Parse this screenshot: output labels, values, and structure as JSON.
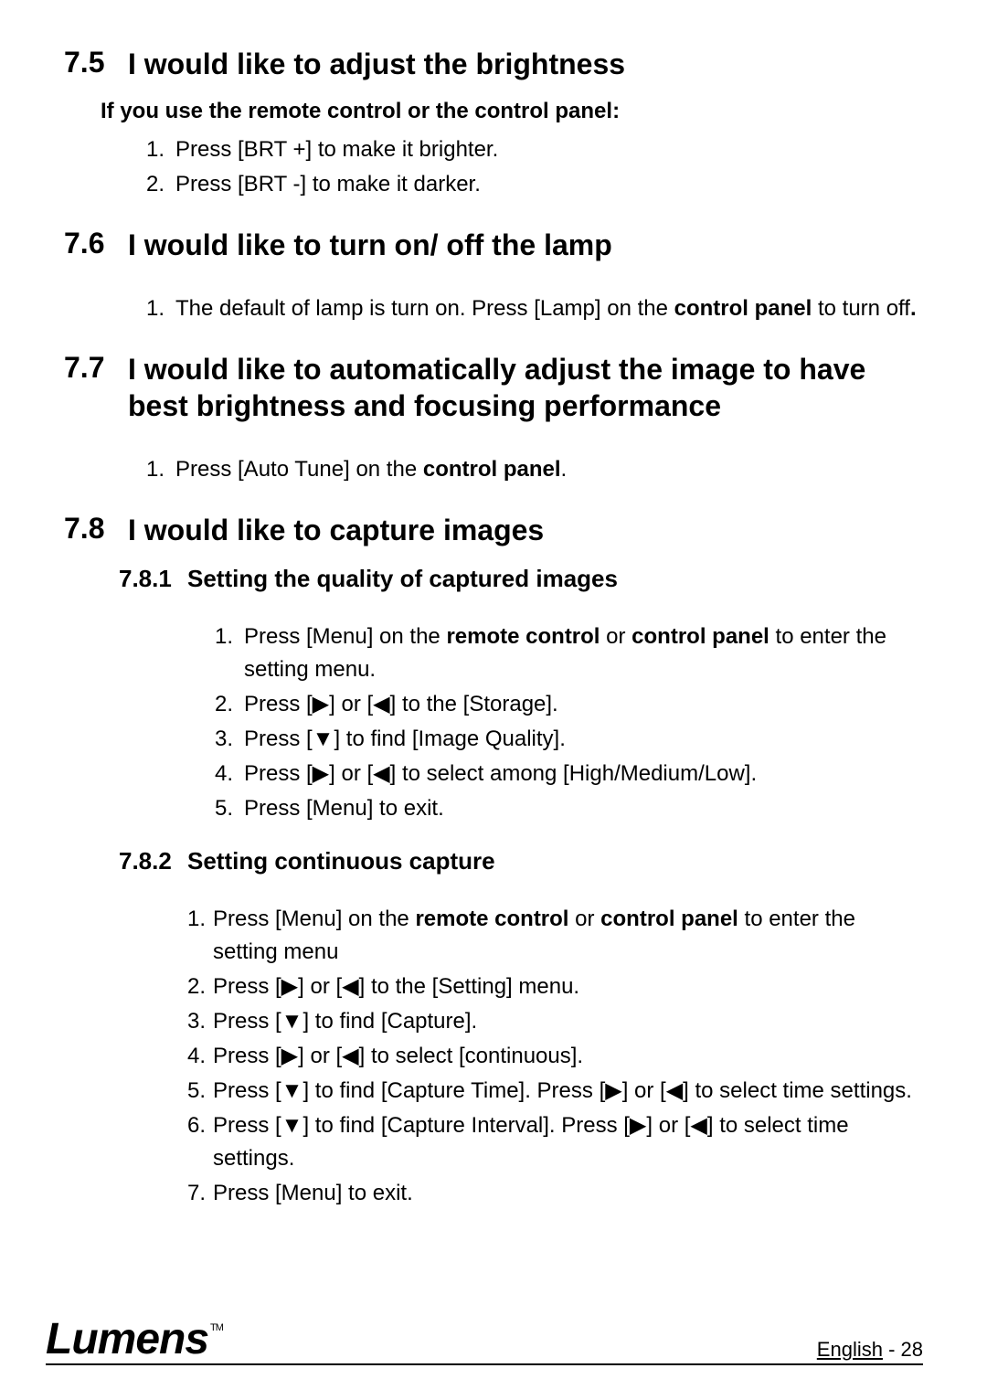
{
  "sections": {
    "s75": {
      "num": "7.5",
      "title": "I would like to adjust the brightness"
    },
    "s76": {
      "num": "7.6",
      "title": "I would like to turn on/ off the lamp"
    },
    "s77": {
      "num": "7.7",
      "title": "I would like to automatically adjust the image to have best brightness and focusing performance"
    },
    "s78": {
      "num": "7.8",
      "title": "I would like to capture images"
    },
    "s781": {
      "num": "7.8.1",
      "title": "Setting the quality of captured images"
    },
    "s782": {
      "num": "7.8.2",
      "title": "Setting continuous capture"
    }
  },
  "s75_sub": "If you use the remote control or the control panel:",
  "s75_items": {
    "i1": {
      "n": "1.",
      "t": "Press [BRT +] to make it brighter."
    },
    "i2": {
      "n": "2.",
      "t": "Press [BRT -] to make it darker."
    }
  },
  "s76_items": {
    "i1": {
      "n": "1.",
      "pre": "The default of lamp is turn on. Press [Lamp] on the ",
      "b1": "control panel",
      "post": " to turn off",
      "b2": "."
    }
  },
  "s77_items": {
    "i1": {
      "n": "1.",
      "pre": "Press [Auto Tune] on the ",
      "b1": "control panel",
      "post": "."
    }
  },
  "s781_items": {
    "i1": {
      "n": "1.",
      "pre": "Press [Menu] on the ",
      "b1": "remote control",
      "mid": " or ",
      "b2": "control panel",
      "post": " to enter the setting menu."
    },
    "i2": {
      "n": "2.",
      "t": "Press [▶] or [◀] to the [Storage]."
    },
    "i3": {
      "n": "3.",
      "t": "Press [▼] to find [Image Quality]."
    },
    "i4": {
      "n": "4.",
      "t": "Press [▶] or [◀] to select among [High/Medium/Low]."
    },
    "i5": {
      "n": "5.",
      "t": "Press [Menu] to exit."
    }
  },
  "s782_items": {
    "i1": {
      "n": "1.",
      "pre": "Press [Menu] on the ",
      "b1": "remote control",
      "mid": " or ",
      "b2": "control panel",
      "post": " to enter the setting menu"
    },
    "i2": {
      "n": "2.",
      "t": "Press [▶] or [◀] to the [Setting] menu."
    },
    "i3": {
      "n": "3.",
      "t": "Press [▼] to find [Capture]."
    },
    "i4": {
      "n": "4.",
      "t": "Press [▶] or [◀] to select [continuous]."
    },
    "i5": {
      "n": "5.",
      "t": "Press [▼] to find [Capture Time]. Press [▶] or [◀] to select time settings."
    },
    "i6": {
      "n": "6.",
      "t": "Press [▼] to find [Capture Interval]. Press [▶] or [◀] to select time settings."
    },
    "i7": {
      "n": "7.",
      "t": "Press [Menu] to exit."
    }
  },
  "footer": {
    "logo": "Lumens",
    "tm": "TM",
    "lang": "English",
    "sep": "  -  ",
    "page": "28"
  }
}
